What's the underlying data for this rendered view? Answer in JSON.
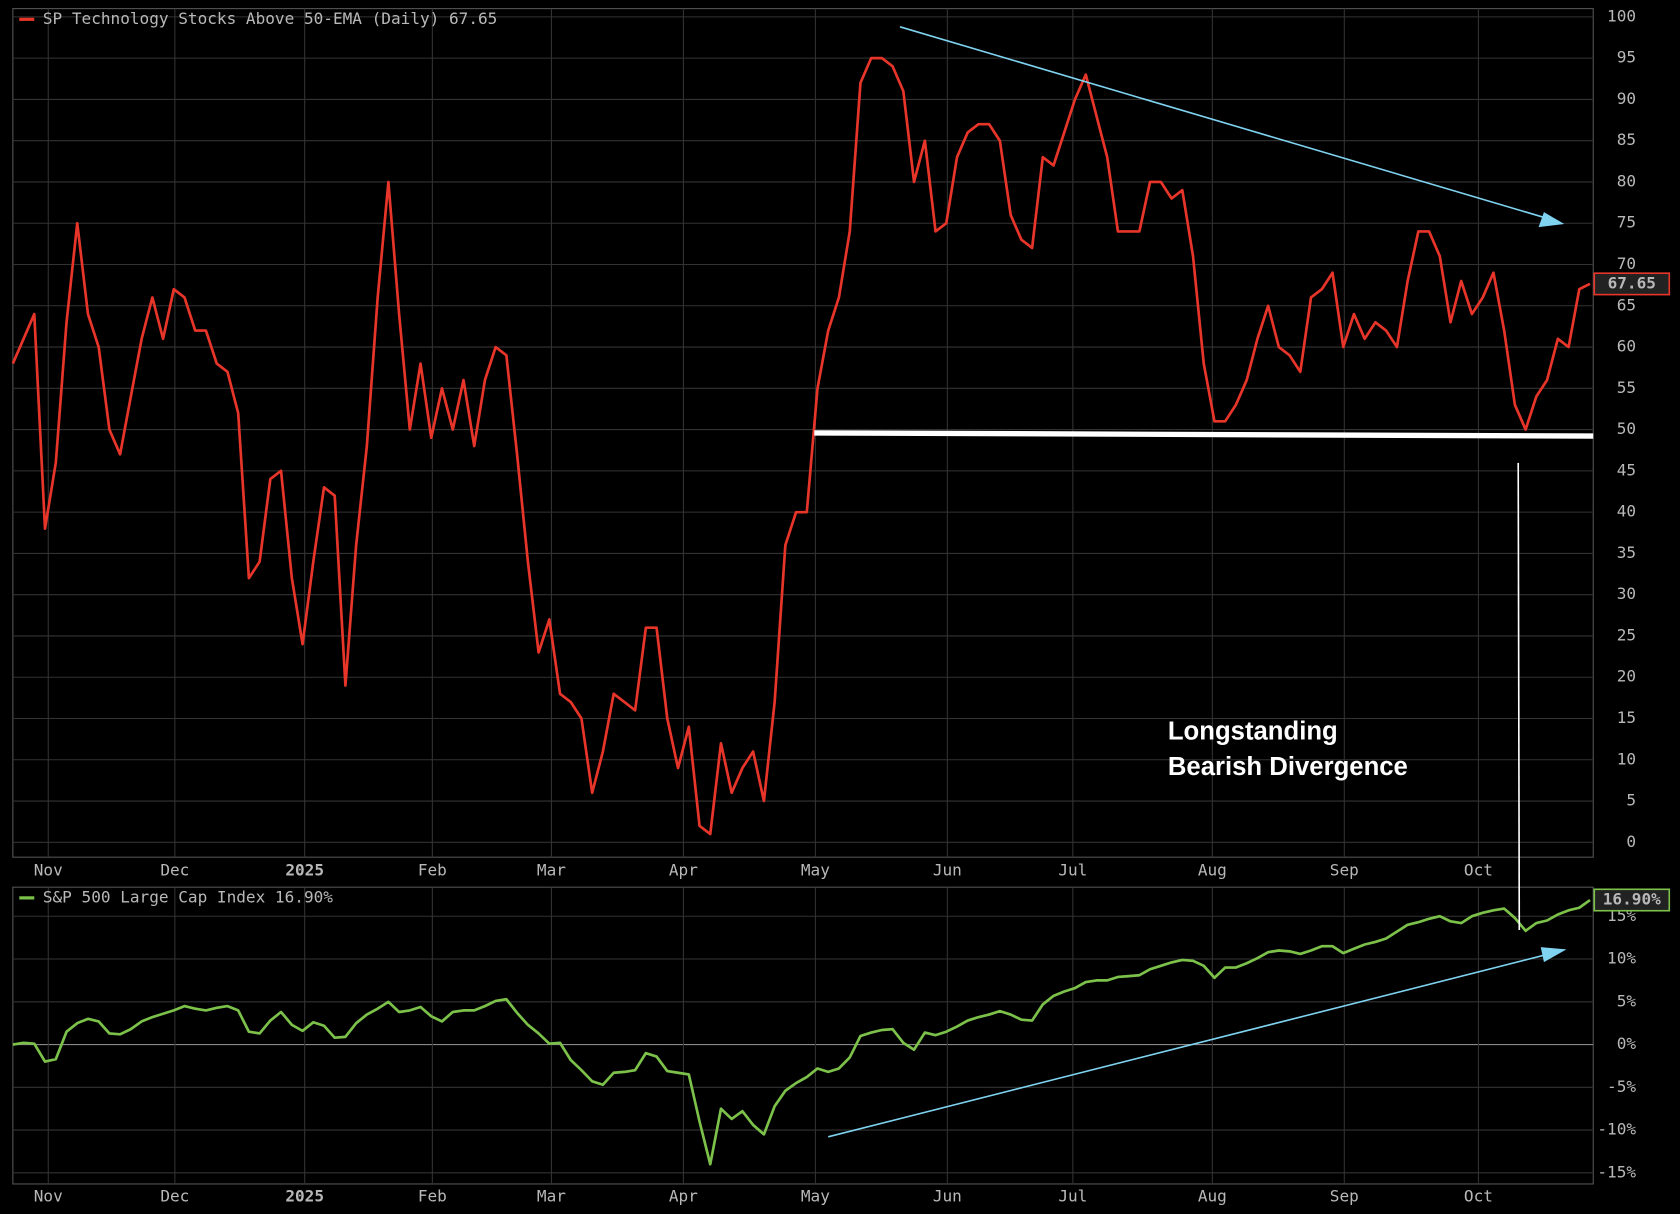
{
  "chart_data": [
    {
      "type": "line",
      "xlim": [
        0,
        147.3
      ],
      "xticks": [
        {
          "value": 3.3,
          "label": "Nov"
        },
        {
          "value": 15.1,
          "label": "Dec"
        },
        {
          "value": 27.2,
          "label": "2025"
        },
        {
          "value": 39.1,
          "label": "Feb"
        },
        {
          "value": 50.2,
          "label": "Mar"
        },
        {
          "value": 62.5,
          "label": "Apr"
        },
        {
          "value": 74.8,
          "label": "May"
        },
        {
          "value": 87.1,
          "label": "Jun"
        },
        {
          "value": 98.8,
          "label": "Jul"
        },
        {
          "value": 111.8,
          "label": "Aug"
        },
        {
          "value": 124.1,
          "label": "Sep"
        },
        {
          "value": 136.6,
          "label": "Oct"
        }
      ],
      "ylim": [
        -1.8,
        101
      ],
      "yticks": [
        0,
        5,
        10,
        15,
        20,
        25,
        30,
        35,
        40,
        45,
        50,
        55,
        60,
        65,
        70,
        75,
        80,
        85,
        90,
        95,
        100
      ],
      "grid": true,
      "annotations": [
        "Longstanding",
        "Bearish Divergence"
      ],
      "series": [
        {
          "name": "SP Technology Stocks Above 50-EMA (Daily) 67.65",
          "color": "#e8352a",
          "value_label": "67.65",
          "values": [
            58,
            61,
            64,
            38,
            46,
            63,
            75,
            64,
            60,
            50,
            47,
            54,
            61,
            66,
            61,
            67,
            66,
            62,
            62,
            58,
            57,
            52,
            32,
            34,
            44,
            45,
            32,
            24,
            34,
            43,
            42,
            19,
            36,
            48,
            66,
            80,
            64,
            50,
            58,
            49,
            55,
            50,
            56,
            48,
            56,
            60,
            59,
            47,
            34,
            23,
            27,
            18,
            17,
            15,
            6,
            11,
            18,
            17,
            16,
            26,
            26,
            15,
            9,
            14,
            2,
            1,
            12,
            6,
            9,
            11,
            5,
            17,
            36,
            40,
            40,
            55,
            62,
            66,
            74,
            92,
            95,
            95,
            94,
            91,
            80,
            85,
            74,
            75,
            83,
            86,
            87,
            87,
            85,
            76,
            73,
            72,
            83,
            82,
            86,
            90,
            93,
            88,
            83,
            74,
            74,
            74,
            80,
            80,
            78,
            79,
            71,
            58,
            51,
            51,
            53,
            56,
            61,
            65,
            60,
            59,
            57,
            66,
            67,
            69,
            60,
            64,
            61,
            63,
            62,
            60,
            68,
            74,
            74,
            71,
            63,
            68,
            64,
            66,
            69,
            62,
            53,
            50,
            54,
            56,
            61,
            60,
            67,
            67.65
          ]
        }
      ]
    },
    {
      "type": "line",
      "xlim": [
        0,
        147.3
      ],
      "xticks": [
        {
          "value": 3.3,
          "label": "Nov"
        },
        {
          "value": 15.1,
          "label": "Dec"
        },
        {
          "value": 27.2,
          "label": "2025"
        },
        {
          "value": 39.1,
          "label": "Feb"
        },
        {
          "value": 50.2,
          "label": "Mar"
        },
        {
          "value": 62.5,
          "label": "Apr"
        },
        {
          "value": 74.8,
          "label": "May"
        },
        {
          "value": 87.1,
          "label": "Jun"
        },
        {
          "value": 98.8,
          "label": "Jul"
        },
        {
          "value": 111.8,
          "label": "Aug"
        },
        {
          "value": 124.1,
          "label": "Sep"
        },
        {
          "value": 136.6,
          "label": "Oct"
        }
      ],
      "ylim": [
        -16.3,
        18.4
      ],
      "yticks": [
        {
          "value": -15,
          "label": "-15%"
        },
        {
          "value": -10,
          "label": "-10%"
        },
        {
          "value": -5,
          "label": "-5%"
        },
        {
          "value": 0,
          "label": "0%"
        },
        {
          "value": 5,
          "label": "5%"
        },
        {
          "value": 10,
          "label": "10%"
        },
        {
          "value": 15,
          "label": "15%"
        }
      ],
      "grid": true,
      "series": [
        {
          "name": "S&P 500 Large Cap Index 16.90%",
          "color": "#7cc24a",
          "value_label": "16.90%",
          "values": [
            0,
            0.2,
            0.1,
            -2,
            -1.7,
            1.5,
            2.5,
            3,
            2.7,
            1.3,
            1.2,
            1.8,
            2.7,
            3.2,
            3.6,
            4,
            4.5,
            4.2,
            4,
            4.3,
            4.5,
            4,
            1.5,
            1.3,
            2.8,
            3.8,
            2.3,
            1.6,
            2.6,
            2.2,
            0.8,
            0.9,
            2.5,
            3.5,
            4.2,
            5,
            3.8,
            4,
            4.4,
            3.3,
            2.7,
            3.8,
            4,
            4,
            4.5,
            5.1,
            5.3,
            3.7,
            2.3,
            1.3,
            0.1,
            0.2,
            -1.8,
            -3,
            -4.3,
            -4.7,
            -3.3,
            -3.2,
            -3,
            -1,
            -1.4,
            -3.1,
            -3.3,
            -3.5,
            -9,
            -14,
            -7.5,
            -8.7,
            -7.8,
            -9.4,
            -10.5,
            -7.2,
            -5.4,
            -4.5,
            -3.8,
            -2.8,
            -3.2,
            -2.8,
            -1.5,
            1,
            1.4,
            1.7,
            1.8,
            0.2,
            -0.6,
            1.4,
            1.1,
            1.5,
            2.1,
            2.8,
            3.2,
            3.5,
            3.9,
            3.5,
            2.9,
            2.8,
            4.7,
            5.7,
            6.2,
            6.6,
            7.3,
            7.5,
            7.5,
            7.9,
            8,
            8.1,
            8.8,
            9.2,
            9.6,
            9.9,
            9.8,
            9.2,
            7.8,
            9,
            9,
            9.5,
            10.1,
            10.8,
            11,
            10.9,
            10.6,
            11,
            11.5,
            11.5,
            10.7,
            11.2,
            11.7,
            12,
            12.4,
            13.2,
            14,
            14.3,
            14.7,
            15,
            14.4,
            14.2,
            15,
            15.4,
            15.7,
            15.9,
            14.8,
            13.3,
            14.2,
            14.5,
            15.2,
            15.7,
            16,
            16.9
          ]
        }
      ]
    }
  ]
}
